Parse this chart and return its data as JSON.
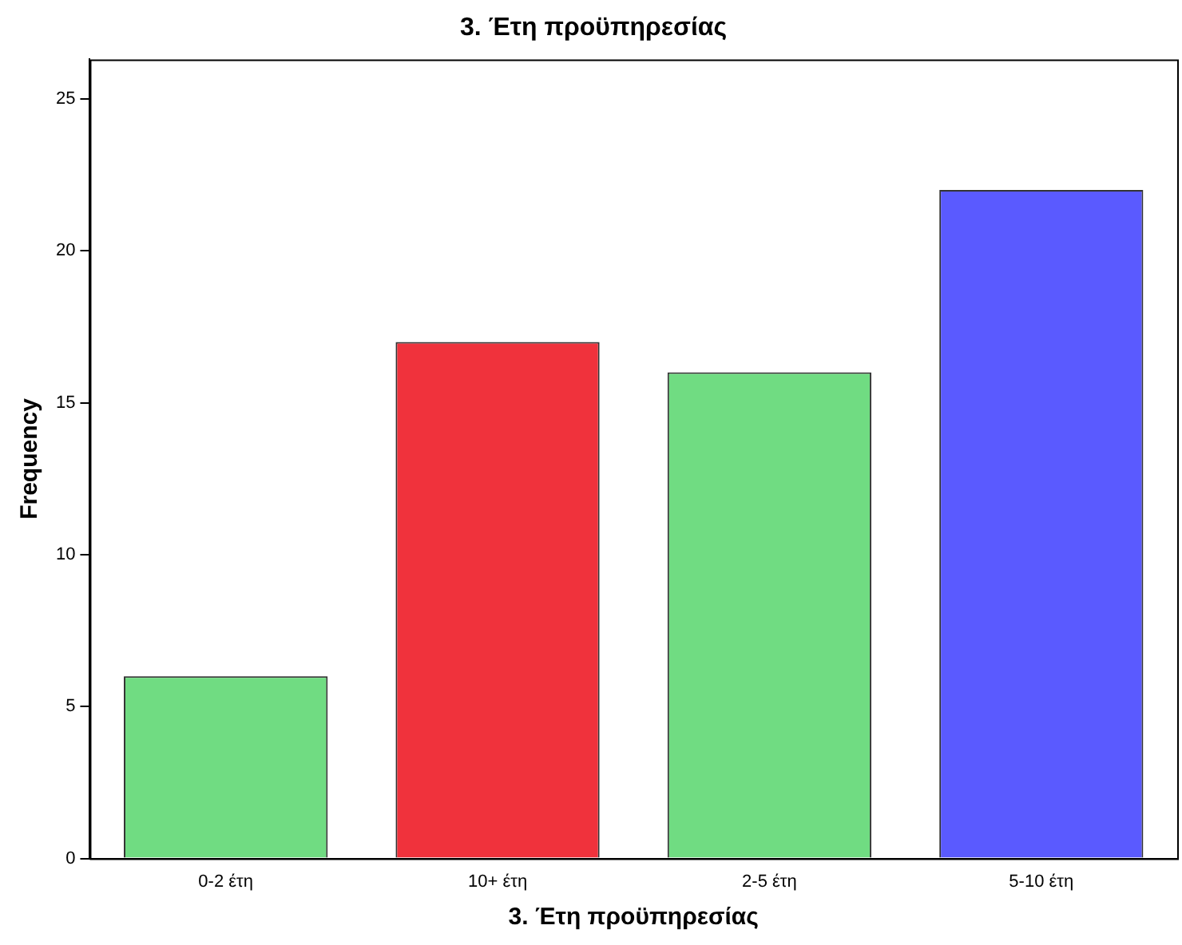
{
  "chart_data": {
    "type": "bar",
    "title": "3. Έτη προϋπηρεσίας",
    "xlabel": "3. Έτη προϋπηρεσίας",
    "ylabel": "Frequency",
    "categories": [
      "0-2 έτη",
      "10+ έτη",
      "2-5 έτη",
      "5-10 έτη"
    ],
    "values": [
      6,
      17,
      16,
      22
    ],
    "colors": [
      "#70dc82",
      "#f0323c",
      "#70dc82",
      "#5a5aff"
    ],
    "ylim": [
      0,
      26.3
    ],
    "yticks": [
      0,
      5,
      10,
      15,
      20,
      25
    ],
    "grid": false,
    "legend": false
  }
}
